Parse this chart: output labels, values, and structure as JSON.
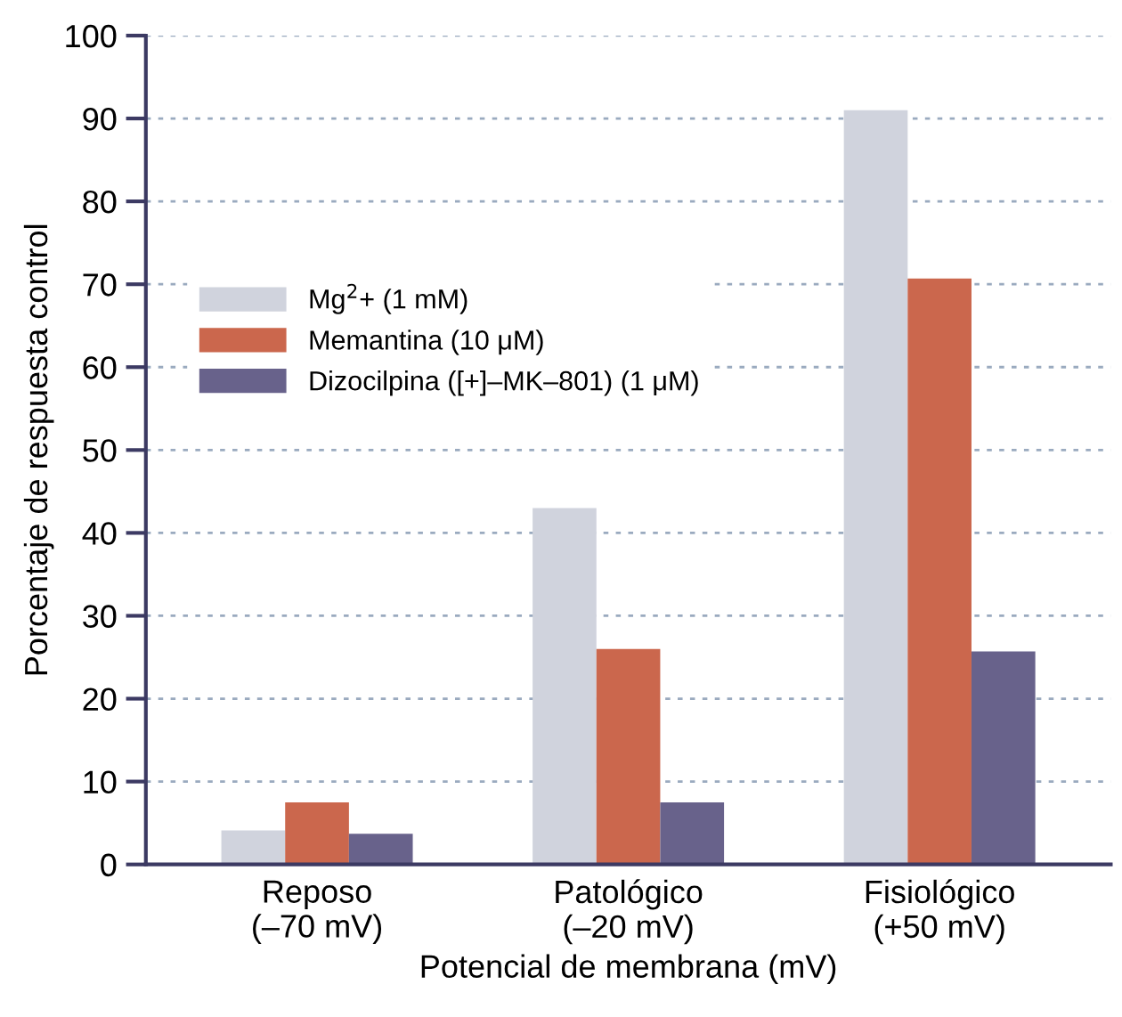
{
  "chart_data": {
    "type": "bar",
    "xlabel": "Potencial de membrana (mV)",
    "ylabel": "Porcentaje de respuesta control",
    "categories": [
      "Reposo\n(–70 mV)",
      "Patológico\n(–20 mV)",
      "Fisiológico\n(+50 mV)"
    ],
    "series": [
      {
        "name": "Mg$^{2}$+ (1 mM)",
        "color": "#d0d3dd",
        "values": [
          4.1,
          43,
          91
        ]
      },
      {
        "name": "Memantina (10 μM)",
        "color": "#cb674d",
        "values": [
          7.5,
          26,
          70.7
        ]
      },
      {
        "name": "Dizocilpina ([+]–MK–801) (1 μM)",
        "color": "#68628b",
        "values": [
          3.7,
          7.5,
          25.7
        ]
      }
    ],
    "ylim": [
      0,
      100
    ],
    "yticks": [
      0,
      10,
      20,
      30,
      40,
      50,
      60,
      70,
      80,
      90,
      100
    ],
    "grid": "y",
    "legend": "top left"
  }
}
